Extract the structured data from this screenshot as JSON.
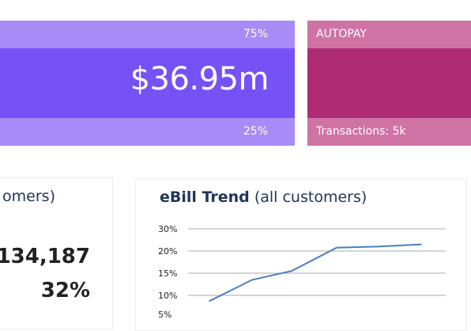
{
  "purple_card": {
    "top_percent": "75%",
    "amount": "$36.95m",
    "bottom_percent": "25%"
  },
  "pink_card": {
    "label": "AUTOPAY",
    "transactions": "Transactions: 5k"
  },
  "left_panel": {
    "title_fragment": "omers)",
    "value": ",134,187",
    "percent": "32%"
  },
  "right_panel": {
    "title_bold": "eBill Trend",
    "title_rest": "(all customers)"
  },
  "colors": {
    "purple_main": "#7652f6",
    "purple_band": "#a78bf7",
    "pink_main": "#ad2b72",
    "pink_band": "#cf73a5",
    "title_navy": "#1f3457",
    "line": "#4b7fbf"
  },
  "chart_data": {
    "type": "line",
    "title": "eBill Trend (all customers)",
    "xlabel": "",
    "ylabel": "",
    "y_tick_labels": [
      "30%",
      "20%",
      "15%",
      "10%",
      "5%"
    ],
    "series": [
      {
        "values": [
          8.5,
          13.5,
          15.5,
          21.5,
          22.0,
          23.0
        ]
      }
    ],
    "grid": true
  }
}
